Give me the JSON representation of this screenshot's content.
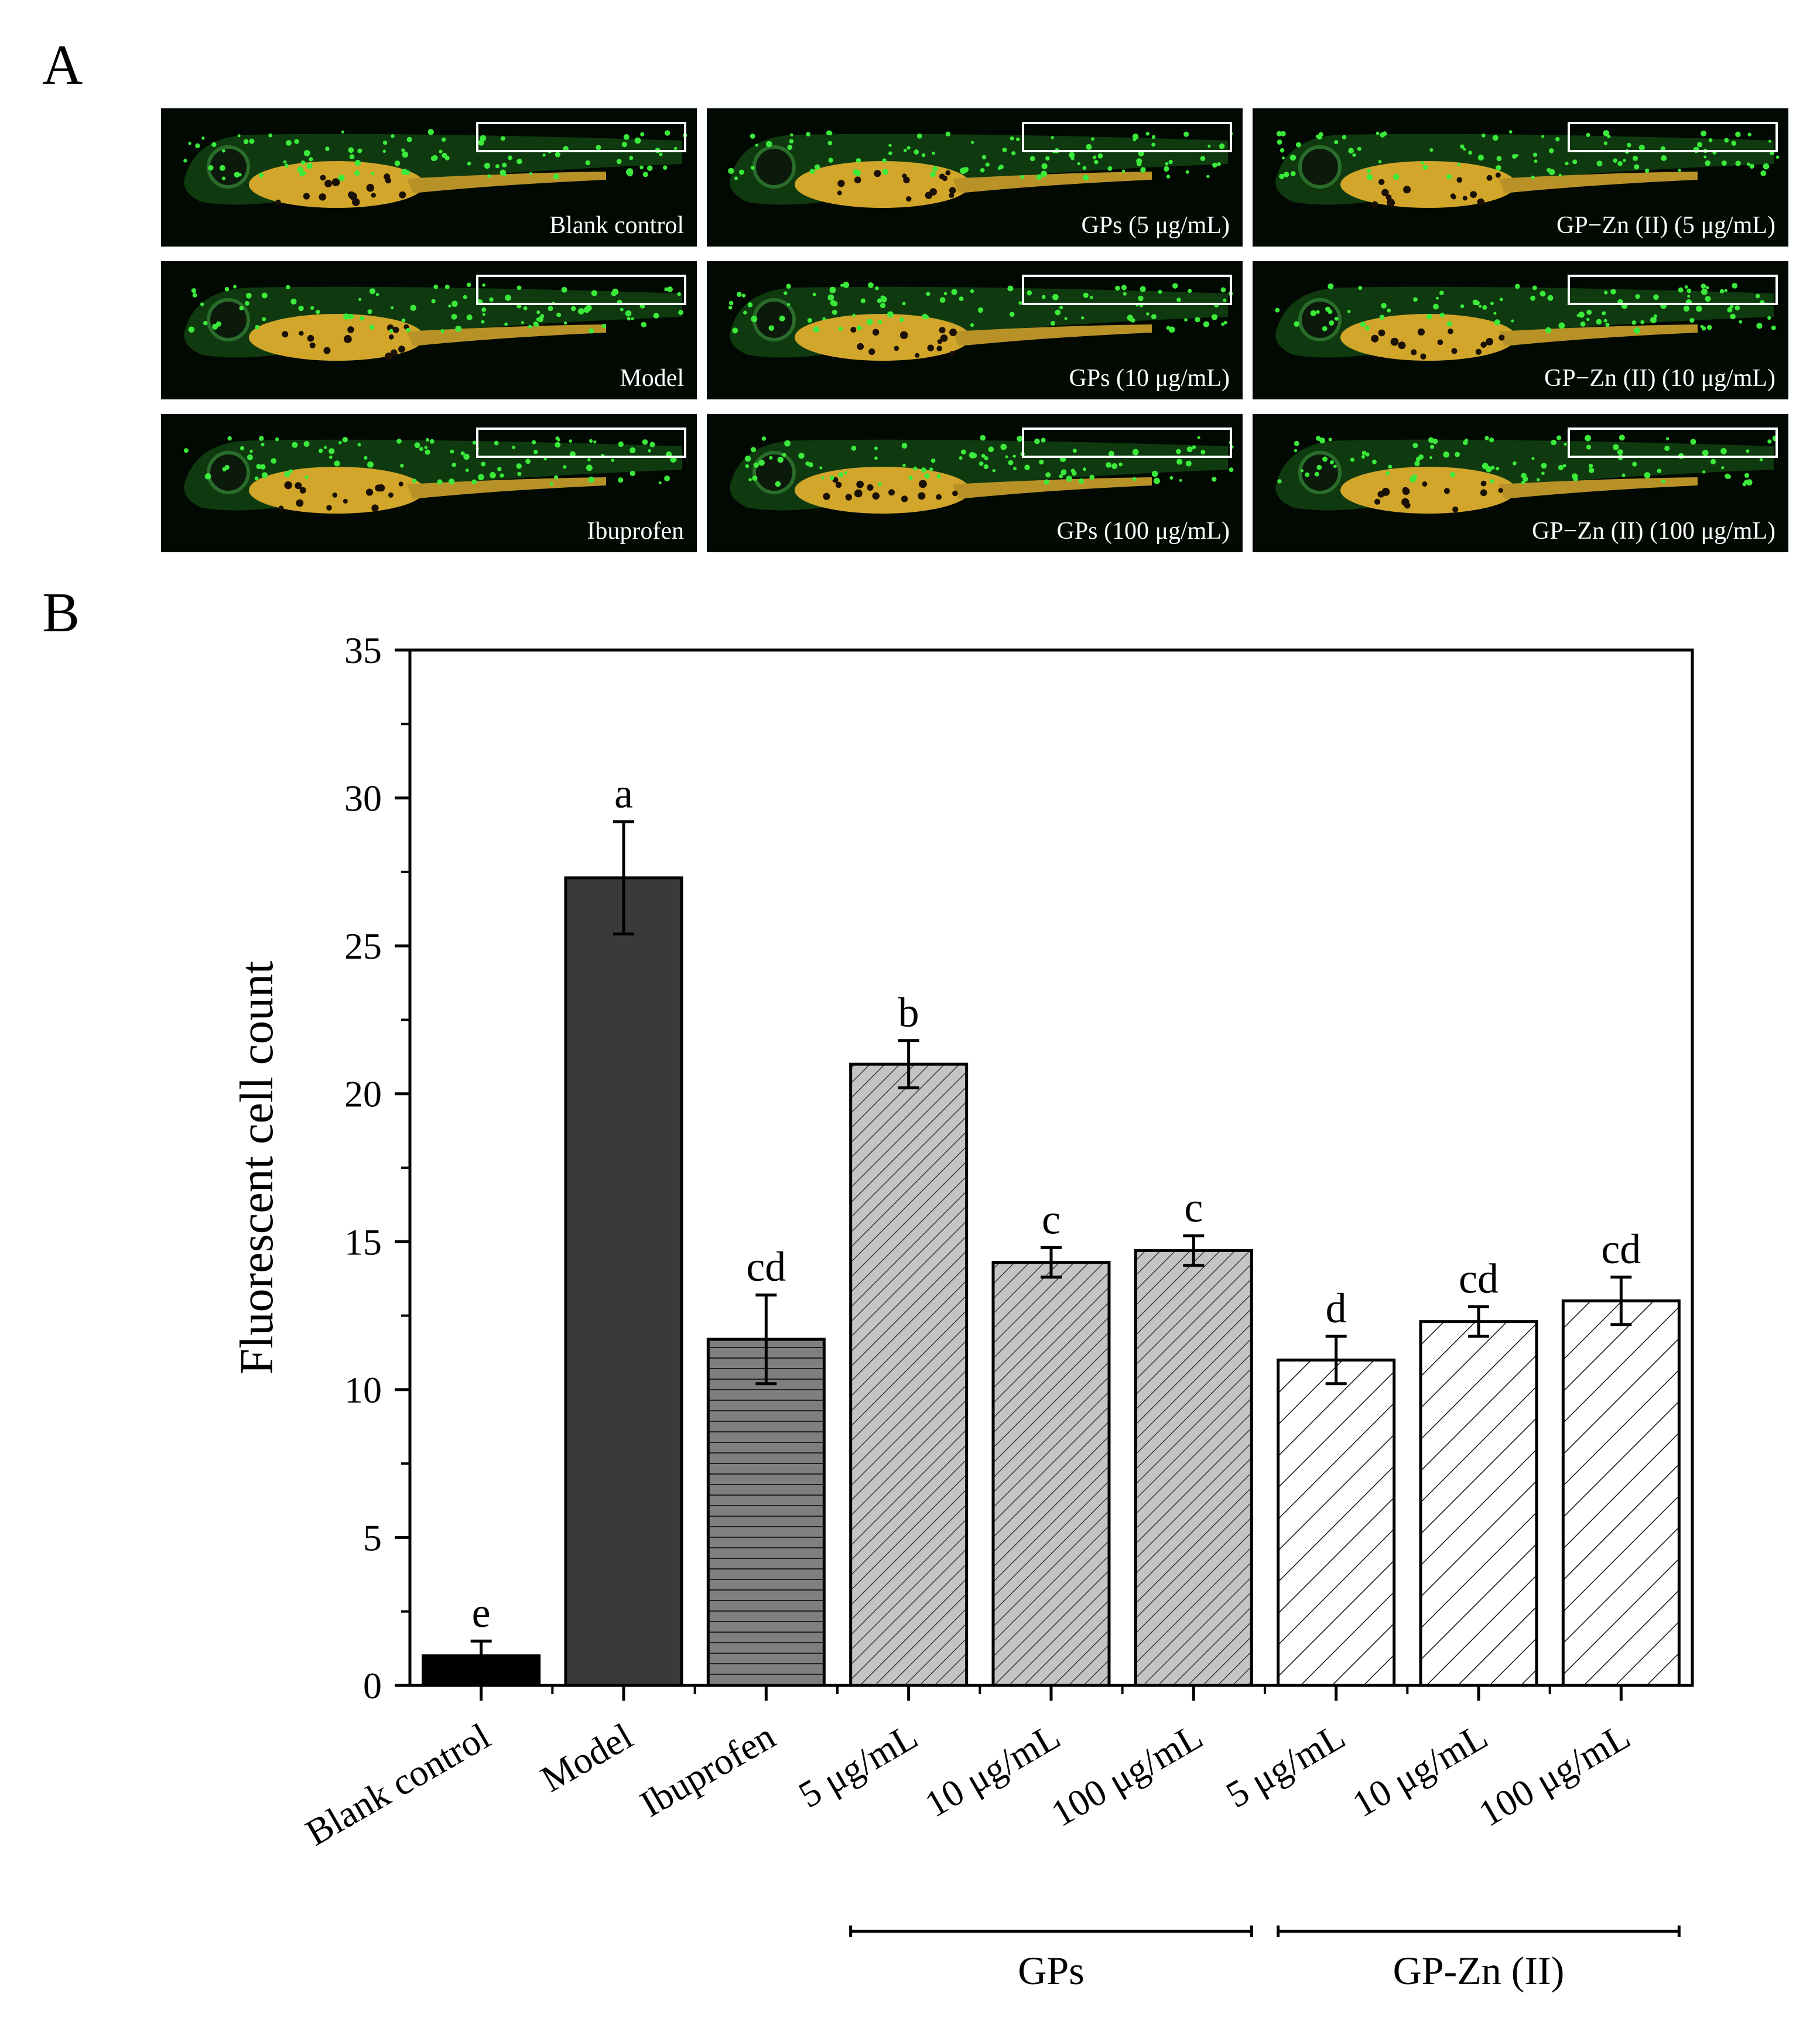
{
  "panel_a": {
    "label": "A",
    "images": [
      {
        "label": "Blank control",
        "rows": [
          [
            8,
            38
          ]
        ]
      },
      {
        "label": "GPs (5 μg/mL)",
        "rows": [
          [
            5,
            30
          ]
        ]
      },
      {
        "label": "GP−Zn (II) (5 μg/mL)",
        "rows": [
          [
            4,
            32
          ]
        ]
      },
      {
        "label": "Model",
        "rows": [
          [
            4,
            34
          ]
        ]
      },
      {
        "label": "GPs (10 μg/mL)",
        "rows": [
          [
            3,
            32
          ]
        ]
      },
      {
        "label": "GP−Zn (II) (10 μg/mL)",
        "rows": [
          [
            3,
            30
          ]
        ]
      },
      {
        "label": "Ibuprofen",
        "rows": [
          [
            4,
            36
          ]
        ]
      },
      {
        "label": "GPs (100 μg/mL)",
        "rows": [
          [
            4,
            32
          ]
        ]
      },
      {
        "label": "GP−Zn (II) (100 μg/mL)",
        "rows": [
          [
            4,
            32
          ]
        ]
      }
    ]
  },
  "panel_b": {
    "label": "B"
  },
  "chart_data": {
    "type": "bar",
    "categories": [
      "Blank control",
      "Model",
      "Ibuprofen",
      "5 μg/mL",
      "10 μg/mL",
      "100 μg/mL",
      "5 μg/mL",
      "10 μg/mL",
      "100 μg/mL"
    ],
    "values": [
      1.0,
      27.3,
      11.7,
      21.0,
      14.3,
      14.7,
      11.0,
      12.3,
      13.0
    ],
    "errors": [
      0.5,
      1.9,
      1.5,
      0.8,
      0.5,
      0.5,
      0.8,
      0.5,
      0.8
    ],
    "significance_letters": [
      "e",
      "a",
      "cd",
      "b",
      "c",
      "c",
      "d",
      "cd",
      "cd"
    ],
    "bar_styles": [
      {
        "fill": "#000000",
        "pattern": "none"
      },
      {
        "fill": "#3a3a3a",
        "pattern": "none"
      },
      {
        "fill": "#7f7f7f",
        "pattern": "horizontal"
      },
      {
        "fill": "#c4c4c4",
        "pattern": "diagonal-dense"
      },
      {
        "fill": "#c4c4c4",
        "pattern": "diagonal-dense"
      },
      {
        "fill": "#c4c4c4",
        "pattern": "diagonal-dense"
      },
      {
        "fill": "#ffffff",
        "pattern": "diagonal-sparse"
      },
      {
        "fill": "#ffffff",
        "pattern": "diagonal-sparse"
      },
      {
        "fill": "#ffffff",
        "pattern": "diagonal-sparse"
      }
    ],
    "groups": [
      {
        "name": "GPs",
        "from": 3,
        "to": 5
      },
      {
        "name": "GP-Zn (II)",
        "from": 6,
        "to": 8
      }
    ],
    "ylabel": "Fluorescent cell count",
    "xlabel": "",
    "ylim": [
      0,
      35
    ],
    "yticks": [
      0,
      5,
      10,
      15,
      20,
      25,
      30,
      35
    ],
    "grid": false
  }
}
